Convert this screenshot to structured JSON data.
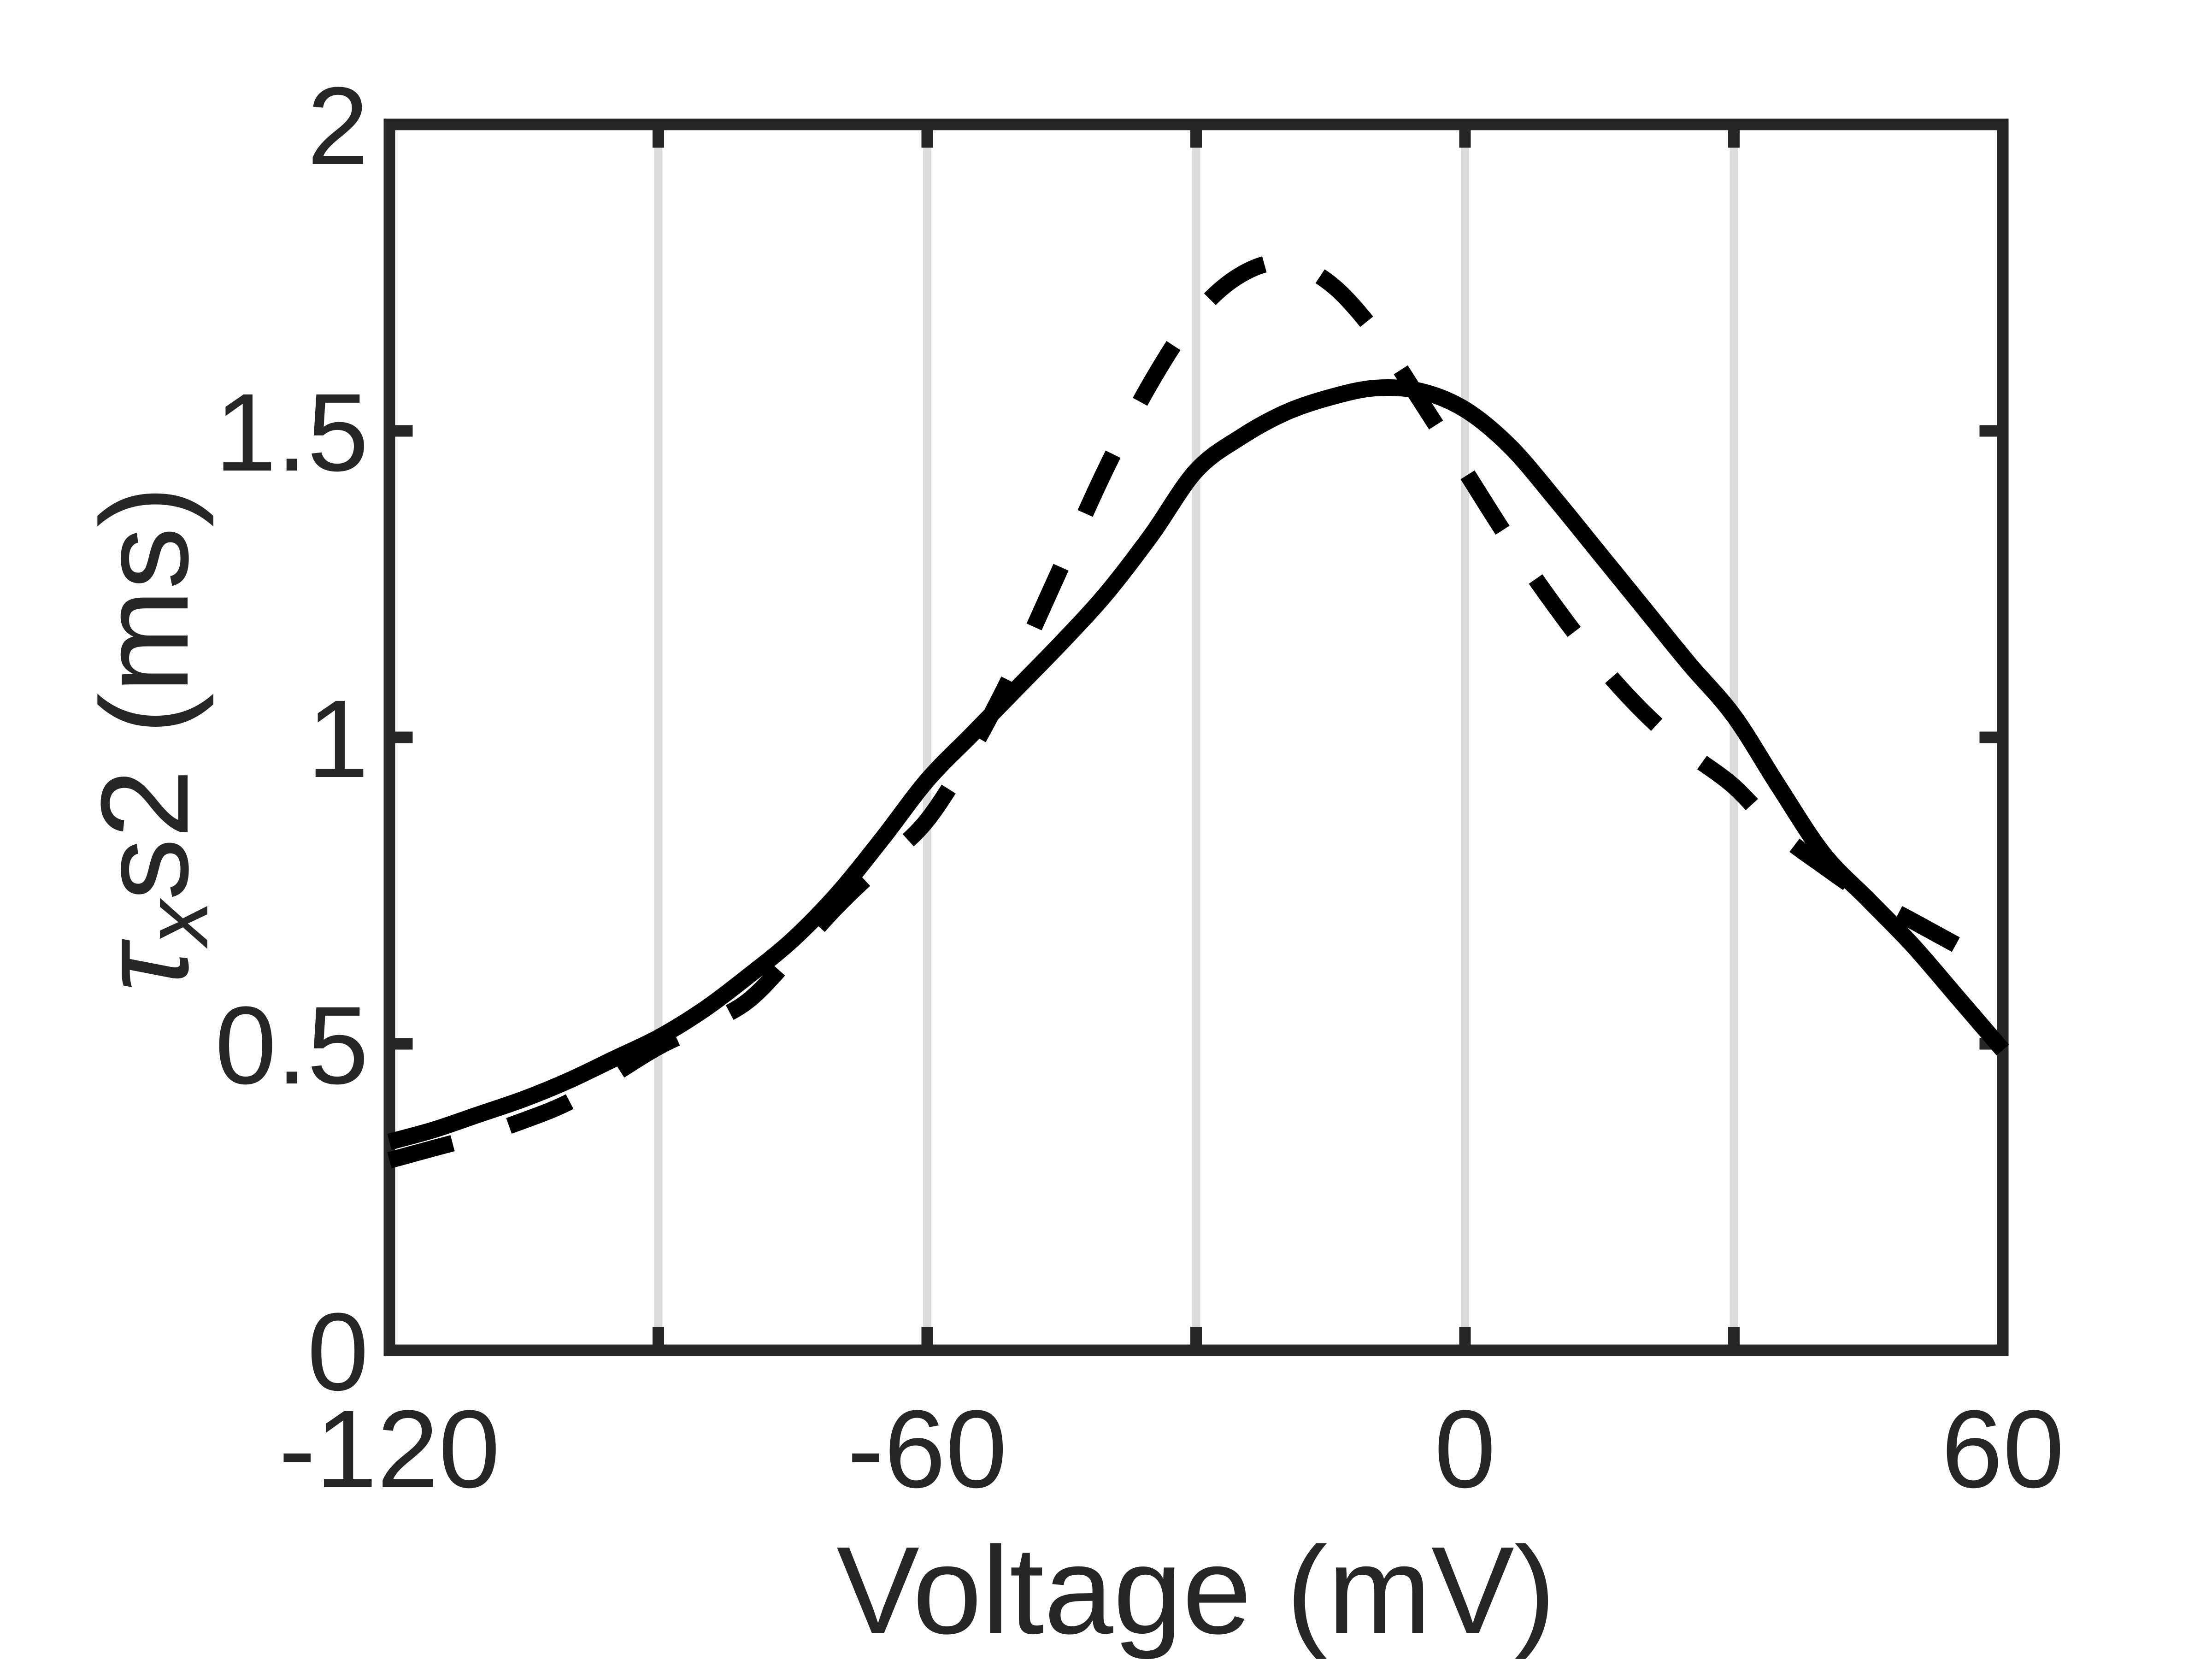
{
  "figure": {
    "background": "#ffffff",
    "axis_color": "#262626",
    "grid_color": "#dbdbdb"
  },
  "chart_data": {
    "type": "line",
    "title": "",
    "xlabel": "Voltage (mV)",
    "ylabel": "τxs2 (ms)",
    "ylabel_parts": {
      "tau": "τ",
      "sub": "x",
      "rest": "s2 (ms)"
    },
    "xlim": [
      -120,
      60
    ],
    "ylim": [
      0,
      2
    ],
    "grid": {
      "x_gridlines": [
        -90,
        -60,
        -30,
        0,
        30
      ],
      "y_gridlines": []
    },
    "xaxis": {
      "ticks": [
        -90,
        -60,
        -30,
        0,
        30
      ],
      "tick_labels": [
        {
          "value": -120,
          "label": "-120"
        },
        {
          "value": -60,
          "label": "-60"
        },
        {
          "value": 0,
          "label": "0"
        },
        {
          "value": 60,
          "label": "60"
        }
      ]
    },
    "yaxis": {
      "ticks": [
        0,
        0.5,
        1,
        1.5,
        2
      ],
      "tick_labels": [
        {
          "value": 0,
          "label": "0"
        },
        {
          "value": 0.5,
          "label": "0.5"
        },
        {
          "value": 1,
          "label": "1"
        },
        {
          "value": 1.5,
          "label": "1.5"
        },
        {
          "value": 2,
          "label": "2"
        }
      ]
    },
    "x": [
      -120,
      -115,
      -110,
      -105,
      -100,
      -95,
      -90,
      -85,
      -80,
      -75,
      -70,
      -65,
      -60,
      -55,
      -50,
      -45,
      -40,
      -35,
      -30,
      -25,
      -20,
      -15,
      -10,
      -5,
      0,
      5,
      10,
      15,
      20,
      25,
      30,
      35,
      40,
      45,
      50,
      55,
      60
    ],
    "series": [
      {
        "name": "solid",
        "style": "solid",
        "color": "#000000",
        "values": [
          0.34,
          0.36,
          0.385,
          0.41,
          0.44,
          0.475,
          0.51,
          0.555,
          0.61,
          0.67,
          0.745,
          0.835,
          0.93,
          1.005,
          1.08,
          1.155,
          1.235,
          1.33,
          1.435,
          1.49,
          1.53,
          1.555,
          1.57,
          1.565,
          1.535,
          1.475,
          1.39,
          1.3,
          1.21,
          1.12,
          1.035,
          0.92,
          0.81,
          0.735,
          0.66,
          0.575,
          0.49
        ]
      },
      {
        "name": "dashed",
        "style": "dashed",
        "color": "#000000",
        "values": [
          0.31,
          0.33,
          0.35,
          0.375,
          0.405,
          0.45,
          0.495,
          0.53,
          0.57,
          0.645,
          0.725,
          0.795,
          0.865,
          0.98,
          1.12,
          1.28,
          1.44,
          1.58,
          1.69,
          1.755,
          1.775,
          1.74,
          1.66,
          1.55,
          1.435,
          1.32,
          1.215,
          1.12,
          1.04,
          0.975,
          0.92,
          0.845,
          0.79,
          0.74,
          0.7,
          0.66,
          0.62
        ]
      }
    ],
    "legend": null
  }
}
